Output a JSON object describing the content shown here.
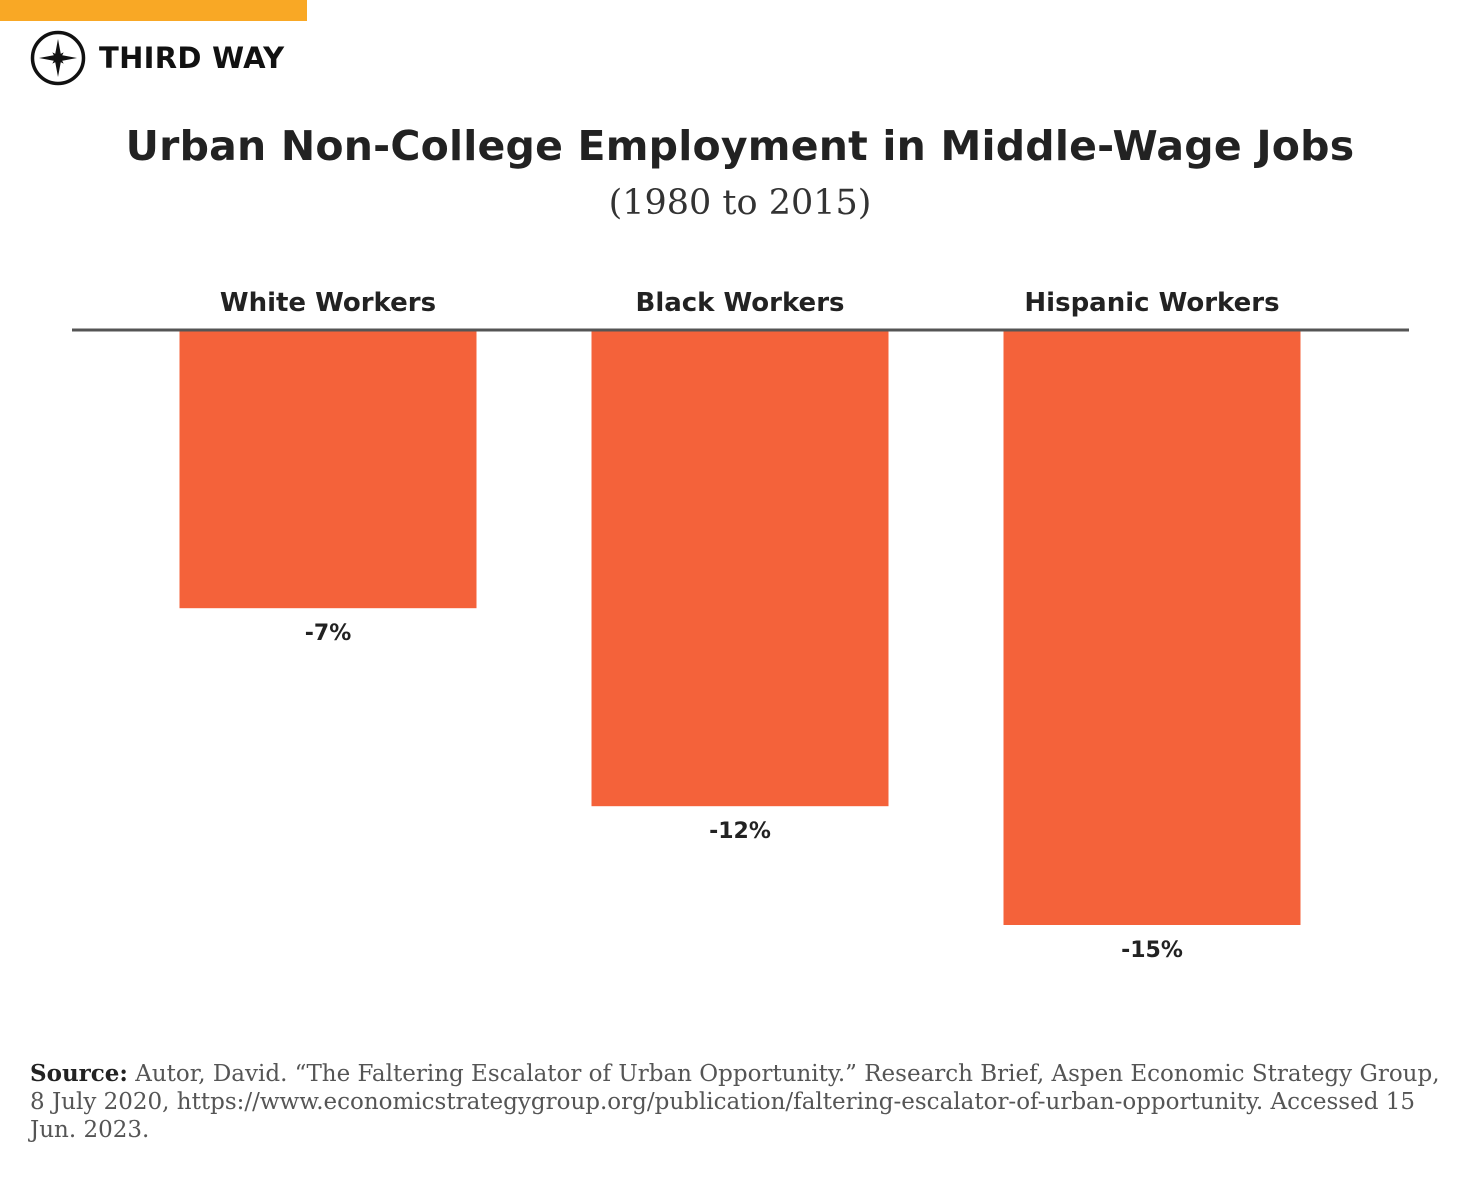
{
  "brand": {
    "name": "THIRD WAY",
    "accent_color": "#F9A825",
    "logo_icon": "compass-star-icon"
  },
  "chart_data": {
    "type": "bar",
    "title": "Urban Non-College Employment in Middle-Wage Jobs",
    "subtitle": "(1980 to 2015)",
    "categories": [
      "White Workers",
      "Black Workers",
      "Hispanic Workers"
    ],
    "values": [
      -7,
      -12,
      -15
    ],
    "value_labels": [
      "-7%",
      "-12%",
      "-15%"
    ],
    "unit": "%",
    "ylim": [
      -15,
      0
    ],
    "bar_color": "#F4623A",
    "xlabel": "",
    "ylabel": "",
    "legend": "none",
    "grid": false
  },
  "source": {
    "label": "Source:",
    "text": "Autor, David. “The Faltering Escalator of Urban Opportunity.” Research Brief, Aspen Economic Strategy Group, 8 July 2020,  https://www.economicstrategygroup.org/publication/faltering-escalator-of-urban-opportunity. Accessed 15 Jun. 2023."
  }
}
